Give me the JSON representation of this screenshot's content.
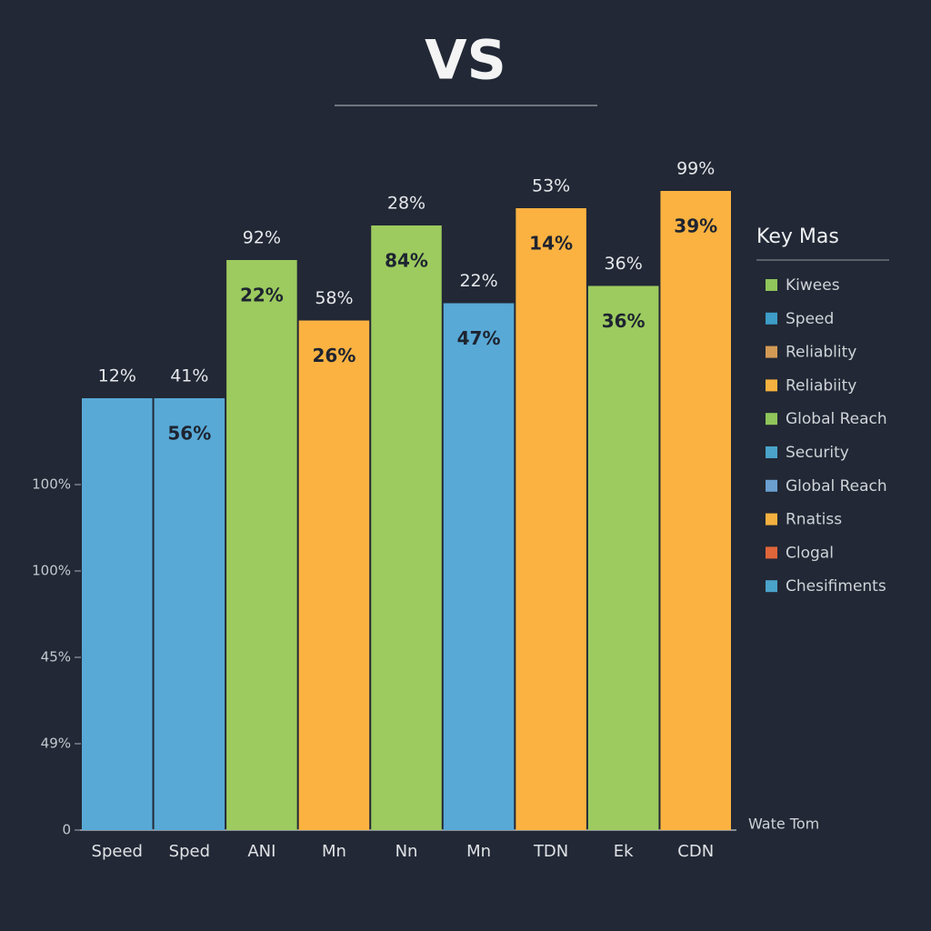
{
  "chart_data": {
    "type": "bar",
    "title": "VS",
    "x_label": "Wate Tom",
    "categories": [
      "Speed",
      "Sped",
      "ANI",
      "Mn",
      "Nn",
      "Mn",
      "TDN",
      "Ek",
      "CDN"
    ],
    "values": [
      5.0,
      5.0,
      6.6,
      5.9,
      7.0,
      6.1,
      7.2,
      6.3,
      7.4
    ],
    "colors": [
      "#58a9d6",
      "#58a9d6",
      "#9dcb5f",
      "#fbb241",
      "#9dcb5f",
      "#58a9d6",
      "#fbb241",
      "#9dcb5f",
      "#fbb241"
    ],
    "labels_above": [
      "12%",
      "41%",
      "92%",
      "58%",
      "28%",
      "22%",
      "53%",
      "36%",
      "99%"
    ],
    "labels_inside": [
      null,
      "56%",
      "22%",
      "26%",
      "84%",
      "47%",
      "14%",
      "36%",
      "39%"
    ],
    "ylim": [
      0,
      8.2
    ],
    "yticks": [
      {
        "value": 0,
        "label": "0"
      },
      {
        "value": 1,
        "label": "49%"
      },
      {
        "value": 2,
        "label": "45%"
      },
      {
        "value": 3,
        "label": "100%"
      },
      {
        "value": 4,
        "label": "100%"
      }
    ],
    "legend": {
      "title": "Key Mas",
      "position": "right",
      "entries": [
        {
          "name": "Kiwees",
          "color": "#8fc55a"
        },
        {
          "name": "Speed",
          "color": "#3d9cc8"
        },
        {
          "name": "Reliablity",
          "color": "#d39a55"
        },
        {
          "name": "Reliabiity",
          "color": "#f5b13f"
        },
        {
          "name": "Global Reach",
          "color": "#8fc55a"
        },
        {
          "name": "Security",
          "color": "#4aa3c8"
        },
        {
          "name": "Global Reach",
          "color": "#6b9fd0"
        },
        {
          "name": "Rnatiss",
          "color": "#f5b13f"
        },
        {
          "name": "Clogal",
          "color": "#e0663a"
        },
        {
          "name": "Chesifiments",
          "color": "#4aa3c8"
        }
      ]
    }
  }
}
